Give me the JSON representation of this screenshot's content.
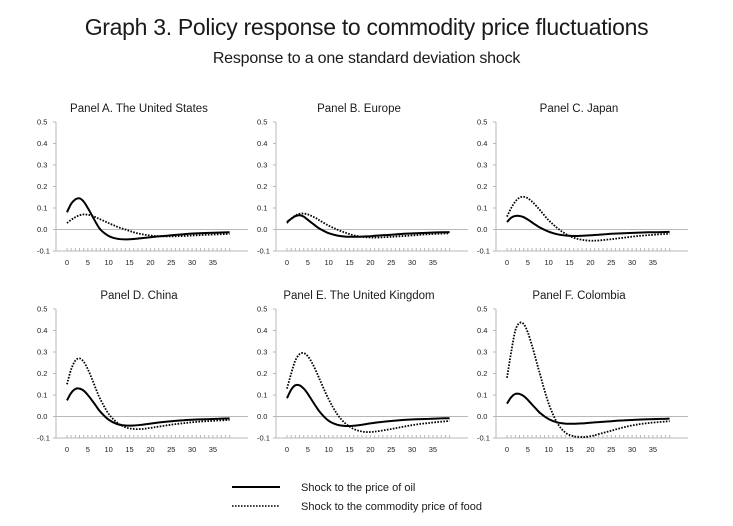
{
  "title": "Graph 3. Policy response to commodity price fluctuations",
  "subtitle": "Response to a one standard deviation shock",
  "chart_data": {
    "type": "line",
    "title": "Graph 3. Policy response to commodity price fluctuations",
    "subtitle": "Response to a one standard deviation shock",
    "xlabel": "",
    "ylabel": "",
    "xlim": [
      0,
      39
    ],
    "ylim": [
      -0.1,
      0.5
    ],
    "x_ticks": [
      0,
      5,
      10,
      15,
      20,
      25,
      30,
      35
    ],
    "y_ticks": [
      "-0.1",
      "0.0",
      "0.1",
      "0.2",
      "0.3",
      "0.4",
      "0.5"
    ],
    "legend": {
      "placement": "bottom-center",
      "entries": [
        {
          "name": "Shock to the price of oil",
          "style": "solid"
        },
        {
          "name": "Shock to the commodity price of food",
          "style": "dotted"
        }
      ]
    },
    "x": [
      0,
      1,
      2,
      3,
      4,
      5,
      6,
      7,
      8,
      10,
      12,
      14,
      16,
      18,
      20,
      22,
      25,
      28,
      31,
      34,
      37,
      39
    ],
    "panels": [
      {
        "title": "Panel A. The United States",
        "series": [
          {
            "name": "Shock to the price of oil",
            "values": [
              0.08,
              0.12,
              0.14,
              0.145,
              0.13,
              0.1,
              0.065,
              0.03,
              0.0,
              -0.03,
              -0.043,
              -0.046,
              -0.044,
              -0.04,
              -0.036,
              -0.032,
              -0.027,
              -0.022,
              -0.018,
              -0.016,
              -0.014,
              -0.013
            ]
          },
          {
            "name": "Shock to the commodity price of food",
            "values": [
              0.03,
              0.045,
              0.057,
              0.066,
              0.07,
              0.069,
              0.064,
              0.056,
              0.047,
              0.03,
              0.013,
              0.0,
              -0.013,
              -0.022,
              -0.028,
              -0.031,
              -0.032,
              -0.03,
              -0.027,
              -0.024,
              -0.022,
              -0.02
            ]
          }
        ]
      },
      {
        "title": "Panel B. Europe",
        "series": [
          {
            "name": "Shock to the price of oil",
            "values": [
              0.035,
              0.05,
              0.062,
              0.066,
              0.06,
              0.045,
              0.03,
              0.015,
              0.002,
              -0.017,
              -0.028,
              -0.033,
              -0.034,
              -0.033,
              -0.031,
              -0.028,
              -0.024,
              -0.02,
              -0.017,
              -0.015,
              -0.013,
              -0.012
            ]
          },
          {
            "name": "Shock to the commodity price of food",
            "values": [
              0.03,
              0.05,
              0.065,
              0.073,
              0.074,
              0.07,
              0.062,
              0.052,
              0.04,
              0.018,
              0.0,
              -0.015,
              -0.027,
              -0.034,
              -0.037,
              -0.037,
              -0.034,
              -0.03,
              -0.026,
              -0.022,
              -0.019,
              -0.018
            ]
          }
        ]
      },
      {
        "title": "Panel C. Japan",
        "series": [
          {
            "name": "Shock to the price of oil",
            "values": [
              0.035,
              0.055,
              0.063,
              0.063,
              0.057,
              0.046,
              0.033,
              0.02,
              0.008,
              -0.01,
              -0.022,
              -0.028,
              -0.03,
              -0.029,
              -0.027,
              -0.024,
              -0.02,
              -0.017,
              -0.015,
              -0.013,
              -0.012,
              -0.011
            ]
          },
          {
            "name": "Shock to the commodity price of food",
            "values": [
              0.06,
              0.1,
              0.13,
              0.148,
              0.152,
              0.145,
              0.13,
              0.11,
              0.088,
              0.043,
              0.008,
              -0.02,
              -0.038,
              -0.048,
              -0.052,
              -0.051,
              -0.045,
              -0.038,
              -0.031,
              -0.026,
              -0.022,
              -0.02
            ]
          }
        ]
      },
      {
        "title": "Panel D. China",
        "series": [
          {
            "name": "Shock to the price of oil",
            "values": [
              0.075,
              0.11,
              0.128,
              0.13,
              0.12,
              0.1,
              0.075,
              0.048,
              0.022,
              -0.015,
              -0.035,
              -0.042,
              -0.042,
              -0.038,
              -0.033,
              -0.028,
              -0.022,
              -0.017,
              -0.014,
              -0.012,
              -0.01,
              -0.009
            ]
          },
          {
            "name": "Shock to the commodity price of food",
            "values": [
              0.15,
              0.22,
              0.26,
              0.27,
              0.255,
              0.22,
              0.175,
              0.125,
              0.08,
              0.012,
              -0.028,
              -0.05,
              -0.058,
              -0.058,
              -0.053,
              -0.047,
              -0.038,
              -0.031,
              -0.025,
              -0.021,
              -0.018,
              -0.016
            ]
          }
        ]
      },
      {
        "title": "Panel E. The United Kingdom",
        "series": [
          {
            "name": "Shock to the price of oil",
            "values": [
              0.085,
              0.125,
              0.145,
              0.145,
              0.13,
              0.105,
              0.075,
              0.045,
              0.018,
              -0.02,
              -0.038,
              -0.044,
              -0.043,
              -0.038,
              -0.032,
              -0.027,
              -0.021,
              -0.016,
              -0.013,
              -0.011,
              -0.009,
              -0.008
            ]
          },
          {
            "name": "Shock to the commodity price of food",
            "values": [
              0.13,
              0.2,
              0.26,
              0.29,
              0.295,
              0.28,
              0.25,
              0.21,
              0.165,
              0.08,
              0.012,
              -0.032,
              -0.058,
              -0.07,
              -0.072,
              -0.068,
              -0.058,
              -0.047,
              -0.037,
              -0.03,
              -0.024,
              -0.021
            ]
          }
        ]
      },
      {
        "title": "Panel F. Colombia",
        "series": [
          {
            "name": "Shock to the price of oil",
            "values": [
              0.06,
              0.09,
              0.105,
              0.105,
              0.095,
              0.077,
              0.056,
              0.035,
              0.015,
              -0.012,
              -0.027,
              -0.033,
              -0.034,
              -0.032,
              -0.029,
              -0.026,
              -0.022,
              -0.018,
              -0.015,
              -0.013,
              -0.011,
              -0.01
            ]
          },
          {
            "name": "Shock to the commodity price of food",
            "values": [
              0.18,
              0.3,
              0.4,
              0.435,
              0.43,
              0.39,
              0.33,
              0.26,
              0.19,
              0.06,
              -0.028,
              -0.075,
              -0.092,
              -0.096,
              -0.092,
              -0.082,
              -0.066,
              -0.05,
              -0.038,
              -0.03,
              -0.025,
              -0.022
            ]
          }
        ]
      }
    ]
  }
}
